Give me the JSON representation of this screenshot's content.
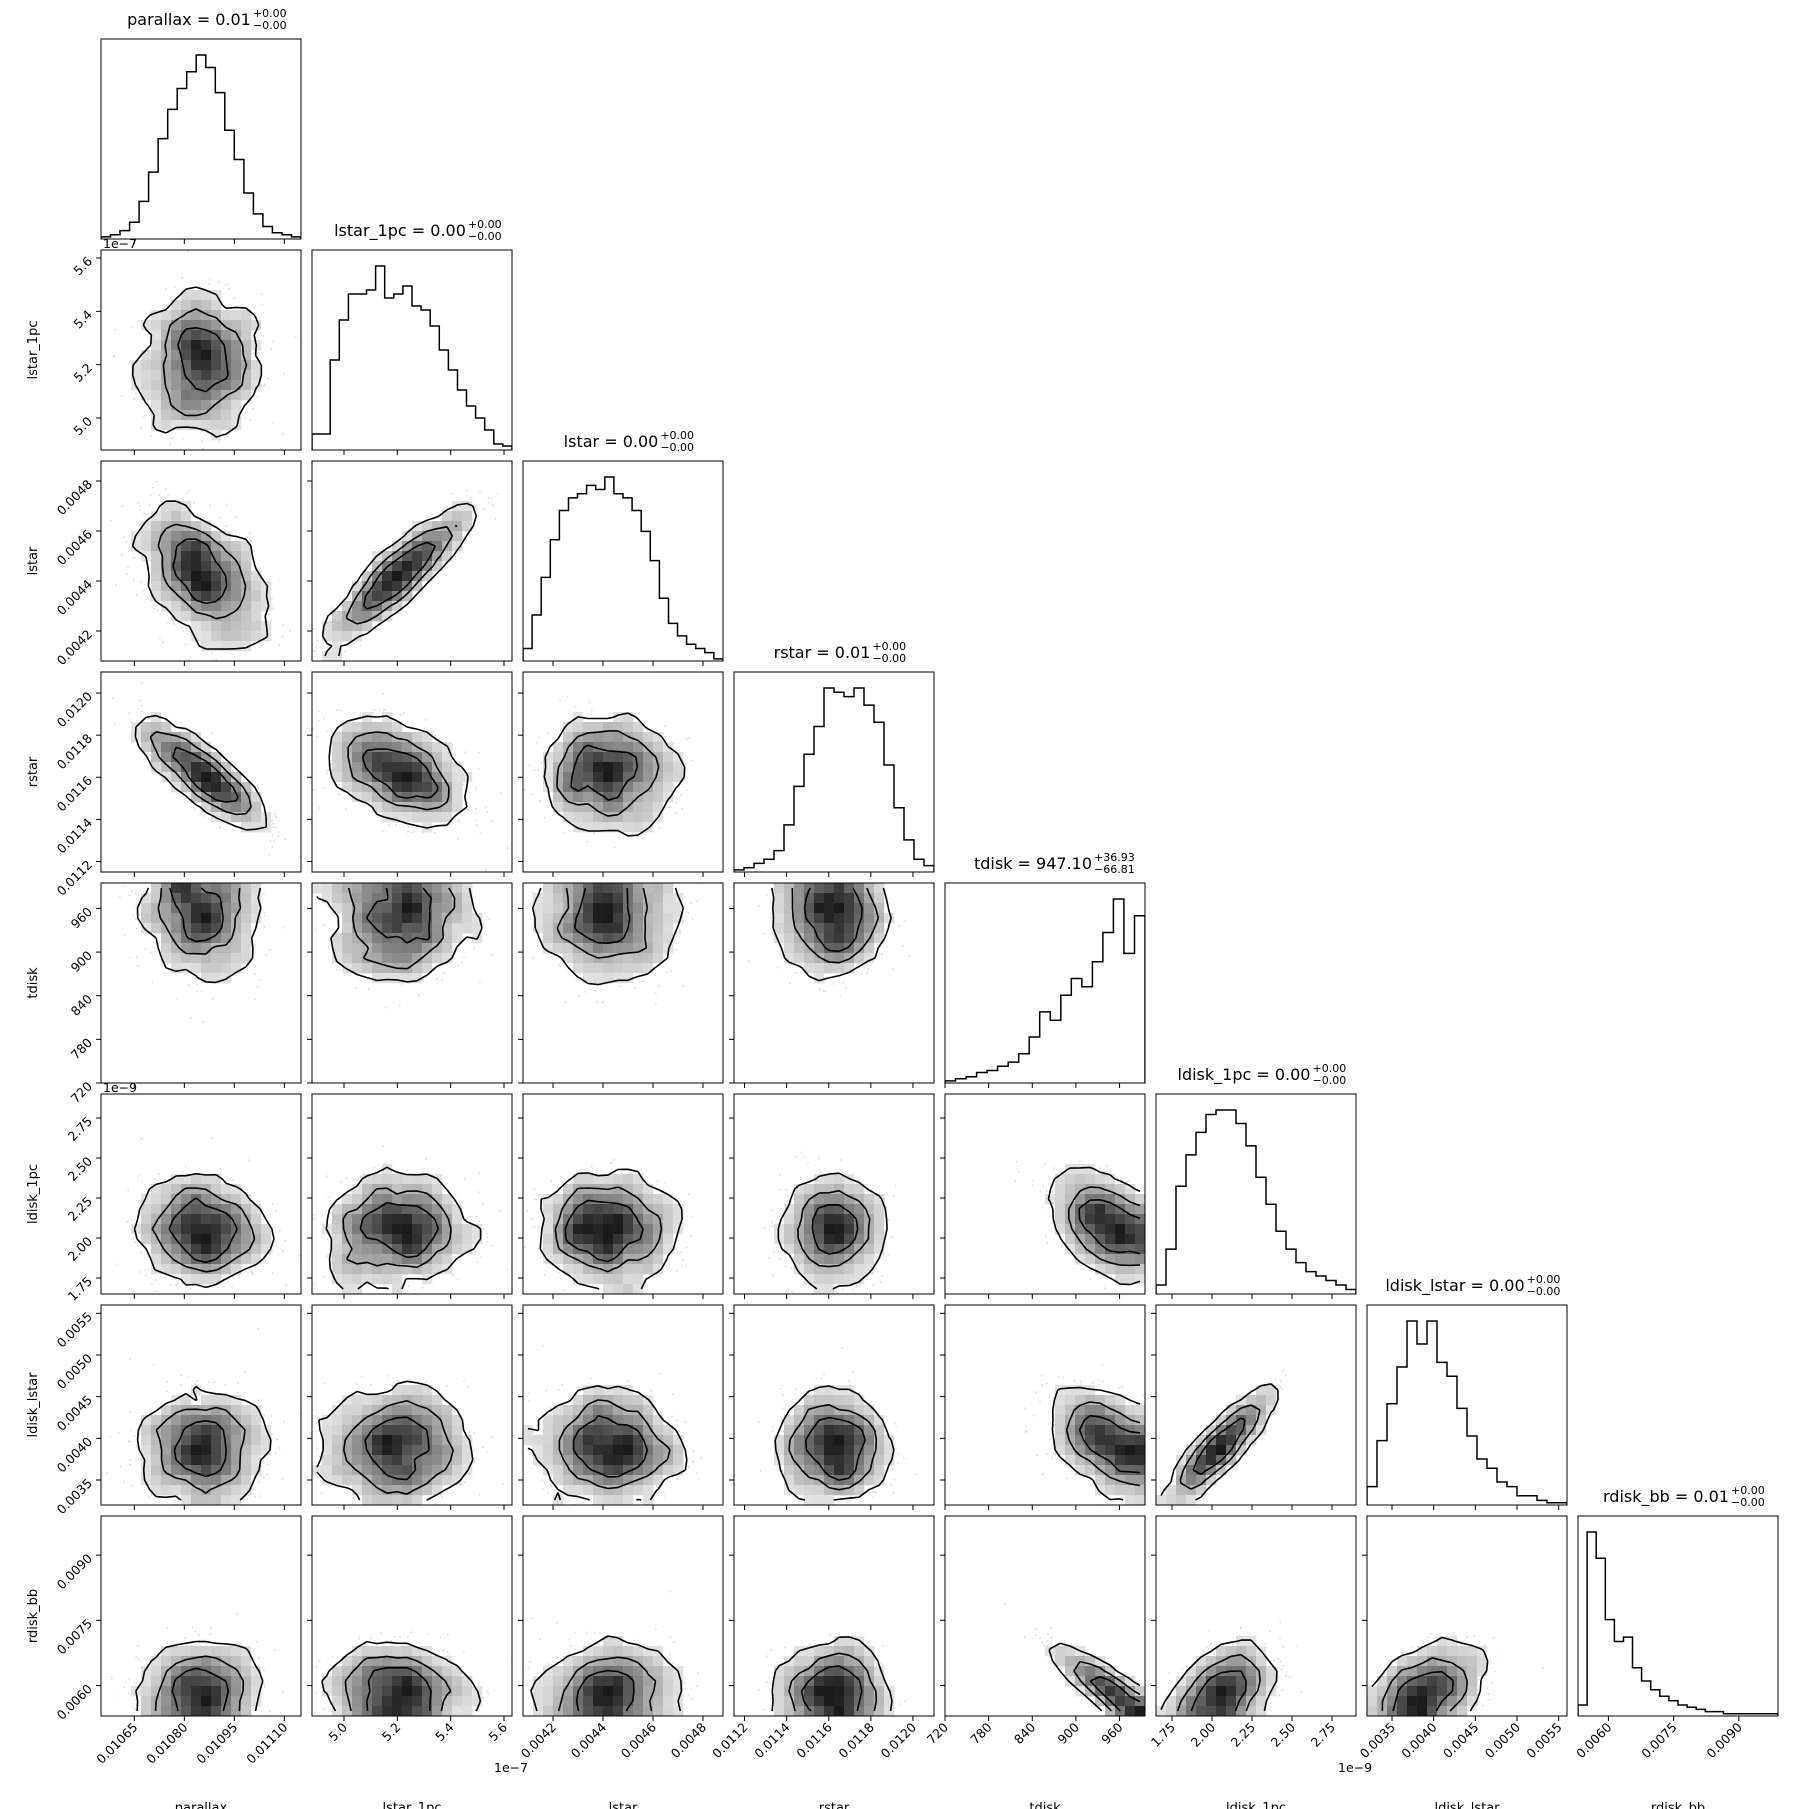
{
  "chart_data": {
    "type": "corner",
    "parameters": [
      {
        "name": "parallax",
        "title_value": "0.01",
        "err_plus": "+0.00",
        "err_minus": "−0.00",
        "range": [
          0.01055,
          0.01115
        ],
        "ticks": [
          0.01065,
          0.0108,
          0.01095,
          0.0111
        ],
        "tick_labels": [
          "0.01065",
          "0.01080",
          "0.01095",
          "0.01110"
        ],
        "offset": "",
        "mean": 0.01085,
        "sd": 9e-05,
        "hist": [
          1,
          2,
          4,
          8,
          18,
          32,
          48,
          62,
          72,
          80,
          88,
          82,
          70,
          52,
          38,
          22,
          12,
          6,
          3,
          2,
          1
        ]
      },
      {
        "name": "lstar_1pc",
        "title_value": "0.00",
        "err_plus": "+0.00",
        "err_minus": "−0.00",
        "range": [
          4.88e-07,
          5.63e-07
        ],
        "ticks": [
          5e-07,
          5.2e-07,
          5.4e-07,
          5.6e-07
        ],
        "tick_labels": [
          "5.0",
          "5.2",
          "5.4",
          "5.6"
        ],
        "offset": "1e−7",
        "mean": 5.2e-07,
        "sd": 1.3e-08,
        "hist": [
          8,
          8,
          45,
          65,
          78,
          78,
          80,
          92,
          76,
          78,
          82,
          72,
          70,
          62,
          50,
          40,
          30,
          22,
          16,
          10,
          3,
          2
        ]
      },
      {
        "name": "lstar",
        "title_value": "0.00",
        "err_plus": "+0.00",
        "err_minus": "−0.00",
        "range": [
          0.00408,
          0.00488
        ],
        "ticks": [
          0.0042,
          0.0044,
          0.0046,
          0.0048
        ],
        "tick_labels": [
          "0.0042",
          "0.0044",
          "0.0046",
          "0.0048"
        ],
        "offset": "",
        "mean": 0.00442,
        "sd": 0.00013,
        "hist": [
          6,
          22,
          40,
          58,
          72,
          78,
          80,
          84,
          82,
          88,
          80,
          78,
          72,
          62,
          48,
          30,
          18,
          12,
          8,
          6,
          4,
          1
        ]
      },
      {
        "name": "rstar",
        "title_value": "0.01",
        "err_plus": "+0.00",
        "err_minus": "−0.00",
        "range": [
          0.01115,
          0.0121
        ],
        "ticks": [
          0.0112,
          0.0114,
          0.0116,
          0.0118,
          0.012
        ],
        "tick_labels": [
          "0.0112",
          "0.0114",
          "0.0116",
          "0.0118",
          "0.0120"
        ],
        "offset": "",
        "mean": 0.01162,
        "sd": 0.00012,
        "hist": [
          1,
          2,
          4,
          6,
          10,
          22,
          40,
          55,
          68,
          86,
          84,
          82,
          86,
          78,
          70,
          50,
          30,
          15,
          6,
          3
        ]
      },
      {
        "name": "tdisk",
        "title_value": "947.10",
        "err_plus": "+36.93",
        "err_minus": "−66.81",
        "range": [
          720,
          995
        ],
        "ticks": [
          720,
          780,
          840,
          900,
          960
        ],
        "tick_labels": [
          "720",
          "780",
          "840",
          "900",
          "960"
        ],
        "offset": "",
        "mean": 955,
        "sd": 45,
        "hist": [
          1,
          2,
          3,
          5,
          6,
          8,
          10,
          14,
          22,
          34,
          30,
          42,
          50,
          46,
          58,
          72,
          88,
          62,
          80
        ]
      },
      {
        "name": "ldisk_1pc",
        "title_value": "0.00",
        "err_plus": "+0.00",
        "err_minus": "−0.00",
        "range": [
          1.65e-09,
          2.9e-09
        ],
        "ticks": [
          1.75e-09,
          2e-09,
          2.25e-09,
          2.5e-09,
          2.75e-09
        ],
        "tick_labels": [
          "1.75",
          "2.00",
          "2.25",
          "2.50",
          "2.75"
        ],
        "offset": "1e−9",
        "mean": 2.05e-09,
        "sd": 1.6e-10,
        "hist": [
          4,
          20,
          48,
          62,
          72,
          80,
          82,
          82,
          76,
          66,
          52,
          40,
          28,
          20,
          14,
          10,
          8,
          6,
          4,
          2
        ]
      },
      {
        "name": "ldisk_lstar",
        "title_value": "0.00",
        "err_plus": "+0.00",
        "err_minus": "−0.00",
        "range": [
          0.0032,
          0.0056
        ],
        "ticks": [
          0.0035,
          0.004,
          0.0045,
          0.005,
          0.0055
        ],
        "tick_labels": [
          "0.0035",
          "0.0040",
          "0.0045",
          "0.0050",
          "0.0055"
        ],
        "offset": "",
        "mean": 0.0039,
        "sd": 0.00033,
        "hist": [
          8,
          28,
          44,
          60,
          80,
          70,
          80,
          62,
          56,
          42,
          30,
          20,
          16,
          10,
          8,
          4,
          4,
          2,
          1,
          1
        ]
      },
      {
        "name": "rdisk_bb",
        "title_value": "0.01",
        "err_plus": "+0.00",
        "err_minus": "−0.00",
        "range": [
          0.0053,
          0.0099
        ],
        "ticks": [
          0.006,
          0.0075,
          0.009
        ],
        "tick_labels": [
          "0.0060",
          "0.0075",
          "0.0090"
        ],
        "offset": "",
        "mean": 0.0058,
        "sd": 0.00055,
        "hist": [
          5,
          84,
          72,
          44,
          34,
          36,
          22,
          16,
          12,
          9,
          7,
          5,
          4,
          3,
          2,
          2,
          1,
          1,
          1,
          1,
          1,
          1
        ]
      }
    ],
    "correlations": [
      [
        1,
        0,
        -0.45,
        -0.85,
        -0.15,
        0,
        0,
        0.05
      ],
      [
        0,
        1,
        0.92,
        -0.45,
        -0.05,
        0.05,
        0,
        0.05
      ],
      [
        -0.45,
        0.92,
        1,
        0,
        0,
        0,
        -0.05,
        0
      ],
      [
        -0.85,
        -0.45,
        0,
        1,
        0,
        0,
        0,
        0
      ],
      [
        -0.15,
        -0.05,
        0,
        0,
        1,
        -0.55,
        -0.55,
        -0.97
      ],
      [
        0,
        0.05,
        0,
        0,
        -0.55,
        1,
        0.95,
        0.5
      ],
      [
        0,
        0,
        -0.05,
        0,
        -0.55,
        0.95,
        1,
        0.45
      ],
      [
        0.05,
        0.05,
        0,
        0,
        -0.97,
        0.5,
        0.45,
        1
      ]
    ],
    "colors": {
      "ink": "#000000",
      "background": "#ffffff",
      "scatter": "#9a9a9a"
    }
  }
}
